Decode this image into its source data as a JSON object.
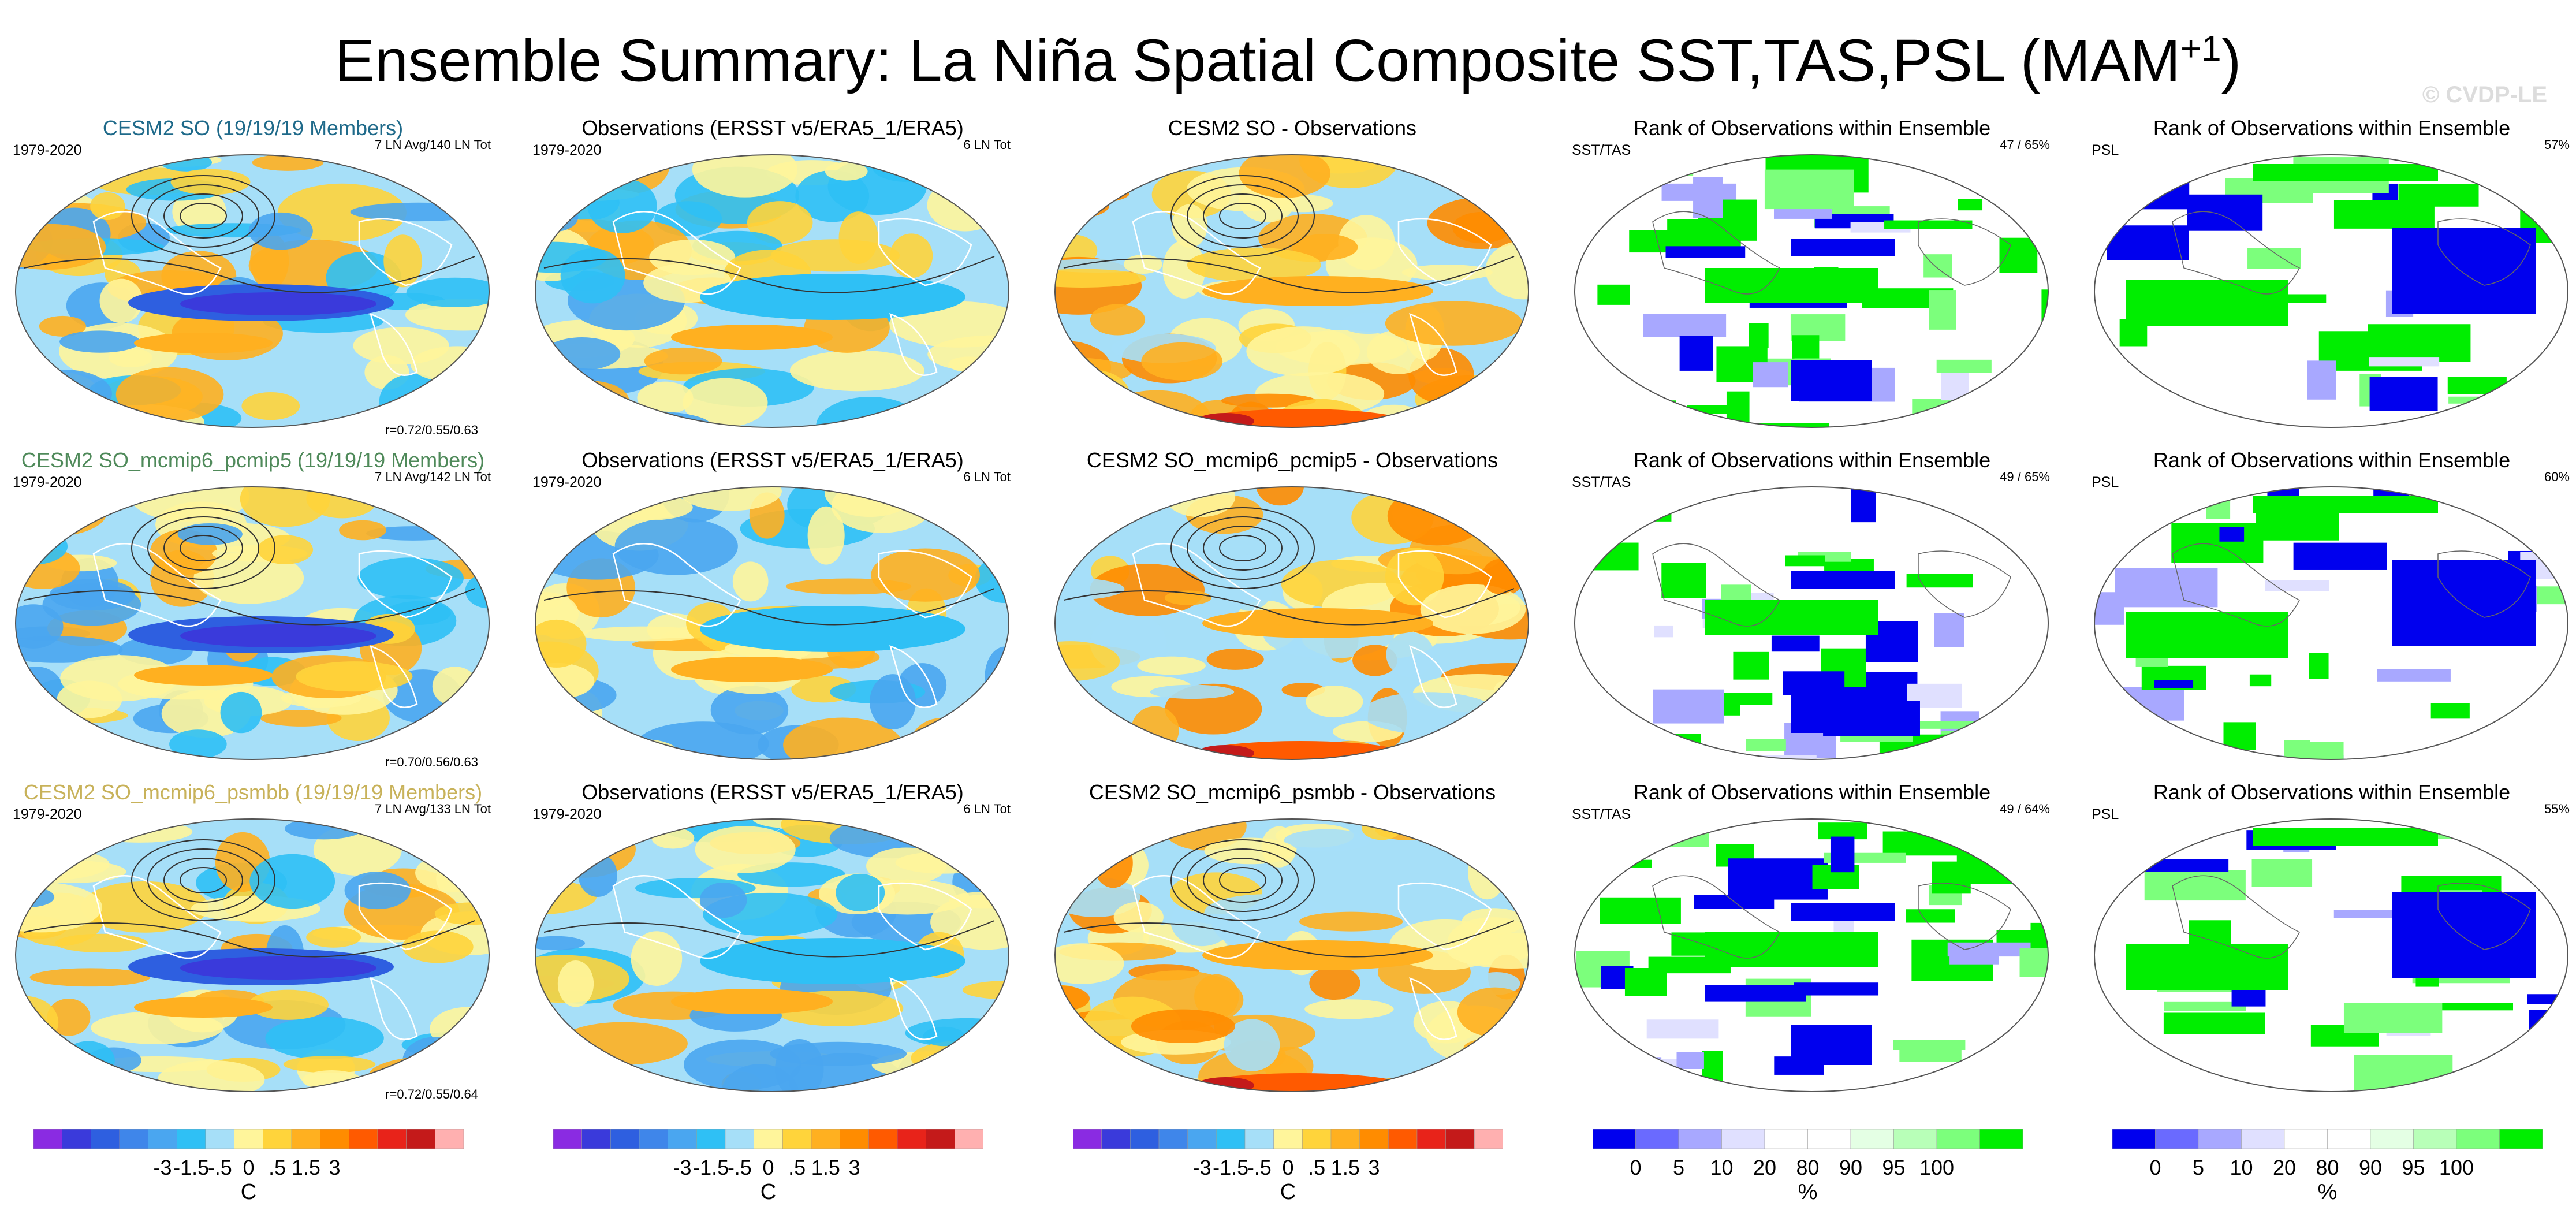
{
  "title": "Ensemble Summary: La Niña Spatial Composite SST,TAS,PSL (MAM",
  "title_sup": "+1",
  "title_close": ")",
  "copyright": "© CVDP-LE",
  "rows": [
    {
      "model": {
        "title": "CESM2 SO (19/19/19 Members)",
        "title_color": "#1f6a8a",
        "period": "1979-2020",
        "count": "7 LN Avg/140 LN Tot",
        "corr": "r=0.72/0.55/0.63"
      },
      "obs": {
        "title": "Observations (ERSST v5/ERA5_1/ERA5)",
        "period": "1979-2020",
        "count": "6 LN Tot"
      },
      "diff": {
        "title": "CESM2 SO - Observations"
      },
      "rank_sst": {
        "title": "Rank of Observations within Ensemble",
        "var": "SST/TAS",
        "pct": "47 /  65%"
      },
      "rank_psl": {
        "title": "Rank of Observations within Ensemble",
        "var": "PSL",
        "pct": "57%"
      }
    },
    {
      "model": {
        "title": "CESM2 SO_mcmip6_pcmip5 (19/19/19 Members)",
        "title_color": "#4f8a5a",
        "period": "1979-2020",
        "count": "7 LN Avg/142 LN Tot",
        "corr": "r=0.70/0.56/0.63"
      },
      "obs": {
        "title": "Observations (ERSST v5/ERA5_1/ERA5)",
        "period": "1979-2020",
        "count": "6 LN Tot"
      },
      "diff": {
        "title": "CESM2 SO_mcmip6_pcmip5 - Observations"
      },
      "rank_sst": {
        "title": "Rank of Observations within Ensemble",
        "var": "SST/TAS",
        "pct": "49 /  65%"
      },
      "rank_psl": {
        "title": "Rank of Observations within Ensemble",
        "var": "PSL",
        "pct": "60%"
      }
    },
    {
      "model": {
        "title": "CESM2 SO_mcmip6_psmbb (19/19/19 Members)",
        "title_color": "#c8b25a",
        "period": "1979-2020",
        "count": "7 LN Avg/133 LN Tot",
        "corr": "r=0.72/0.55/0.64"
      },
      "obs": {
        "title": "Observations (ERSST v5/ERA5_1/ERA5)",
        "period": "1979-2020",
        "count": "6 LN Tot"
      },
      "diff": {
        "title": "CESM2 SO_mcmip6_psmbb - Observations"
      },
      "rank_sst": {
        "title": "Rank of Observations within Ensemble",
        "var": "SST/TAS",
        "pct": "49 /  64%"
      },
      "rank_psl": {
        "title": "Rank of Observations within Ensemble",
        "var": "PSL",
        "pct": "55%"
      }
    }
  ],
  "legend_temp": {
    "unit": "C",
    "ticks": [
      "-3",
      "-1.5",
      "-.5",
      "0",
      ".5",
      "1.5",
      "3"
    ],
    "colors": [
      "#8a2be2",
      "#3a3adb",
      "#2e5fe0",
      "#3f86ea",
      "#4aa6f0",
      "#2fc0f5",
      "#a6dff8",
      "#fff59b",
      "#ffd43b",
      "#ffb020",
      "#ff8c00",
      "#ff5a00",
      "#e8231a",
      "#c41a1a",
      "#ffb0b0"
    ]
  },
  "legend_rank": {
    "unit": "%",
    "ticks": [
      "0",
      "5",
      "10",
      "20",
      "80",
      "90",
      "95",
      "100"
    ],
    "colors": [
      "#0000ee",
      "#6a6aff",
      "#a8a8ff",
      "#e0e0ff",
      "#ffffff",
      "#ffffff",
      "#e4ffe4",
      "#b8ffb8",
      "#7cff7c",
      "#00ee00"
    ]
  }
}
